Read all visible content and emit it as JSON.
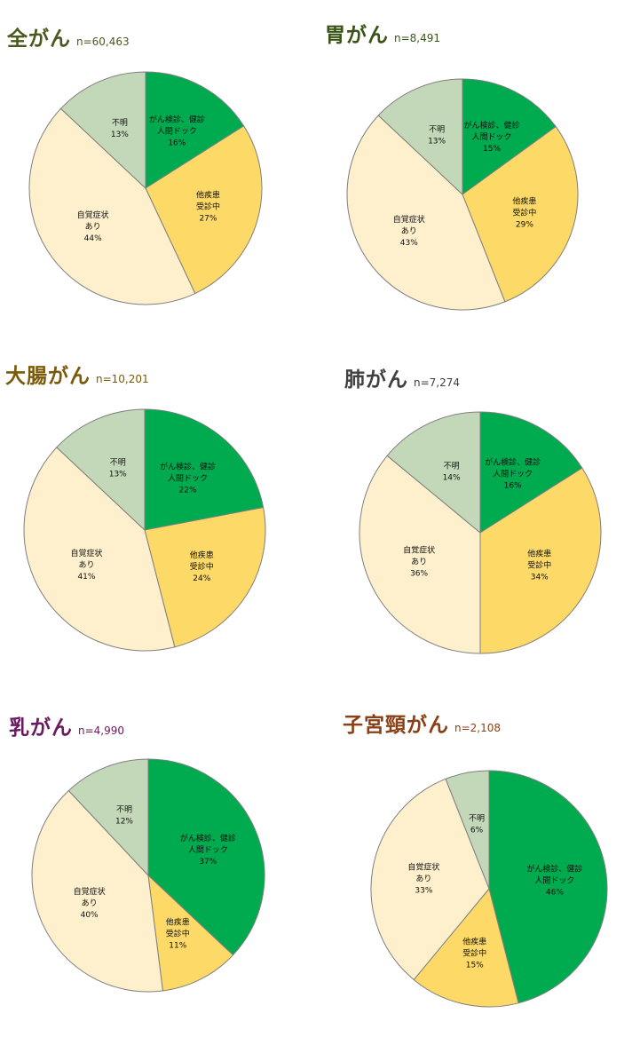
{
  "categories": [
    "がん検診、健診 人間ドック",
    "他疾患 受診中",
    "自覚症状 あり",
    "不明"
  ],
  "colors": {
    "checkup": "#00aa4f",
    "other_disease": "#fdd968",
    "symptoms": "#fef0cc",
    "unknown": "#c3d8b8",
    "edge": "#7f7f7f"
  },
  "chart_data": [
    {
      "type": "pie",
      "title": "全がん",
      "title_color": "#4a5a1e",
      "n_label": "n=60,463",
      "slices": [
        {
          "key": "checkup",
          "value": 16,
          "label_lines": [
            "がん検診、健診",
            "人間ドック",
            "16%"
          ]
        },
        {
          "key": "other_disease",
          "value": 27,
          "label_lines": [
            "他疾患",
            "受診中",
            "27%"
          ]
        },
        {
          "key": "symptoms",
          "value": 44,
          "label_lines": [
            "自覚症状",
            "あり",
            "44%"
          ]
        },
        {
          "key": "unknown",
          "value": 13,
          "label_lines": [
            "不明",
            "13%"
          ]
        }
      ]
    },
    {
      "type": "pie",
      "title": "胃がん",
      "title_color": "#3a5418",
      "n_label": "n=8,491",
      "slices": [
        {
          "key": "checkup",
          "value": 15,
          "label_lines": [
            "がん検診、健診",
            "人間ドック",
            "15%"
          ]
        },
        {
          "key": "other_disease",
          "value": 29,
          "label_lines": [
            "他疾患",
            "受診中",
            "29%"
          ]
        },
        {
          "key": "symptoms",
          "value": 43,
          "label_lines": [
            "自覚症状",
            "あり",
            "43%"
          ]
        },
        {
          "key": "unknown",
          "value": 13,
          "label_lines": [
            "不明",
            "13%"
          ]
        }
      ]
    },
    {
      "type": "pie",
      "title": "大腸がん",
      "title_color": "#7a5a0a",
      "n_label": "n=10,201",
      "slices": [
        {
          "key": "checkup",
          "value": 22,
          "label_lines": [
            "がん検診、健診",
            "人間ドック",
            "22%"
          ]
        },
        {
          "key": "other_disease",
          "value": 24,
          "label_lines": [
            "他疾患",
            "受診中",
            "24%"
          ]
        },
        {
          "key": "symptoms",
          "value": 41,
          "label_lines": [
            "自覚症状",
            "あり",
            "41%"
          ]
        },
        {
          "key": "unknown",
          "value": 13,
          "label_lines": [
            "不明",
            "13%"
          ]
        }
      ]
    },
    {
      "type": "pie",
      "title": "肺がん",
      "title_color": "#404040",
      "n_label": "n=7,274",
      "slices": [
        {
          "key": "checkup",
          "value": 16,
          "label_lines": [
            "がん検診、健診",
            "人間ドック",
            "16%"
          ]
        },
        {
          "key": "other_disease",
          "value": 34,
          "label_lines": [
            "他疾患",
            "受診中",
            "34%"
          ]
        },
        {
          "key": "symptoms",
          "value": 36,
          "label_lines": [
            "自覚症状",
            "あり",
            "36%"
          ]
        },
        {
          "key": "unknown",
          "value": 14,
          "label_lines": [
            "不明",
            "14%"
          ]
        }
      ]
    },
    {
      "type": "pie",
      "title": "乳がん",
      "title_color": "#6a1a5e",
      "n_label": "n=4,990",
      "slices": [
        {
          "key": "checkup",
          "value": 37,
          "label_lines": [
            "がん検診、健診",
            "人間ドック",
            "37%"
          ]
        },
        {
          "key": "other_disease",
          "value": 11,
          "label_lines": [
            "他疾患",
            "受診中",
            "11%"
          ]
        },
        {
          "key": "symptoms",
          "value": 40,
          "label_lines": [
            "自覚症状",
            "あり",
            "40%"
          ]
        },
        {
          "key": "unknown",
          "value": 12,
          "label_lines": [
            "不明",
            "12%"
          ]
        }
      ]
    },
    {
      "type": "pie",
      "title": "子宮頸がん",
      "title_color": "#8a3f14",
      "n_label": "n=2,108",
      "slices": [
        {
          "key": "checkup",
          "value": 46,
          "label_lines": [
            "がん検診、健診",
            "人間ドック",
            "46%"
          ]
        },
        {
          "key": "other_disease",
          "value": 15,
          "label_lines": [
            "他疾患",
            "受診中",
            "15%"
          ]
        },
        {
          "key": "symptoms",
          "value": 33,
          "label_lines": [
            "自覚症状",
            "あり",
            "33%"
          ]
        },
        {
          "key": "unknown",
          "value": 6,
          "label_lines": [
            "不明",
            "6%"
          ]
        }
      ]
    }
  ]
}
